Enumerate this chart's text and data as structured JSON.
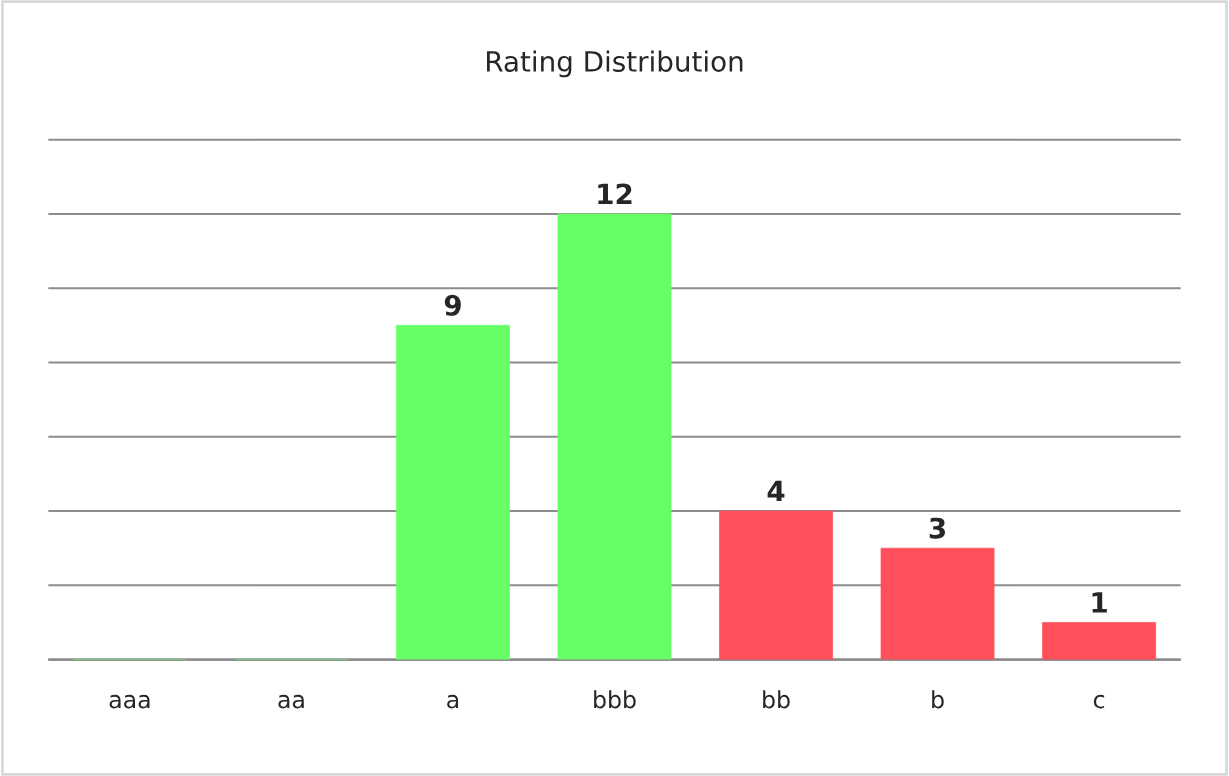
{
  "chart_data": {
    "type": "bar",
    "title": "Rating Distribution",
    "categories": [
      "aaa",
      "aa",
      "a",
      "bbb",
      "bb",
      "b",
      "c"
    ],
    "values": [
      0,
      0,
      9,
      12,
      4,
      3,
      1
    ],
    "colors": [
      "#66ff66",
      "#66ff66",
      "#66ff66",
      "#66ff66",
      "#ff4f5a",
      "#ff4f5a",
      "#ff4f5a"
    ],
    "value_labels": [
      null,
      null,
      "9",
      "12",
      "4",
      "3",
      "1"
    ],
    "ylim": [
      0,
      14
    ],
    "yticks": [
      {
        "value": 0,
        "label": null
      },
      {
        "value": 2,
        "label": null
      },
      {
        "value": 4,
        "label": null
      },
      {
        "value": 6,
        "label": null
      },
      {
        "value": 8,
        "label": null
      },
      {
        "value": 10,
        "label": null
      },
      {
        "value": 12,
        "label": null
      },
      {
        "value": 14,
        "label": null
      }
    ],
    "tick_labels": "x",
    "grid": "y"
  }
}
